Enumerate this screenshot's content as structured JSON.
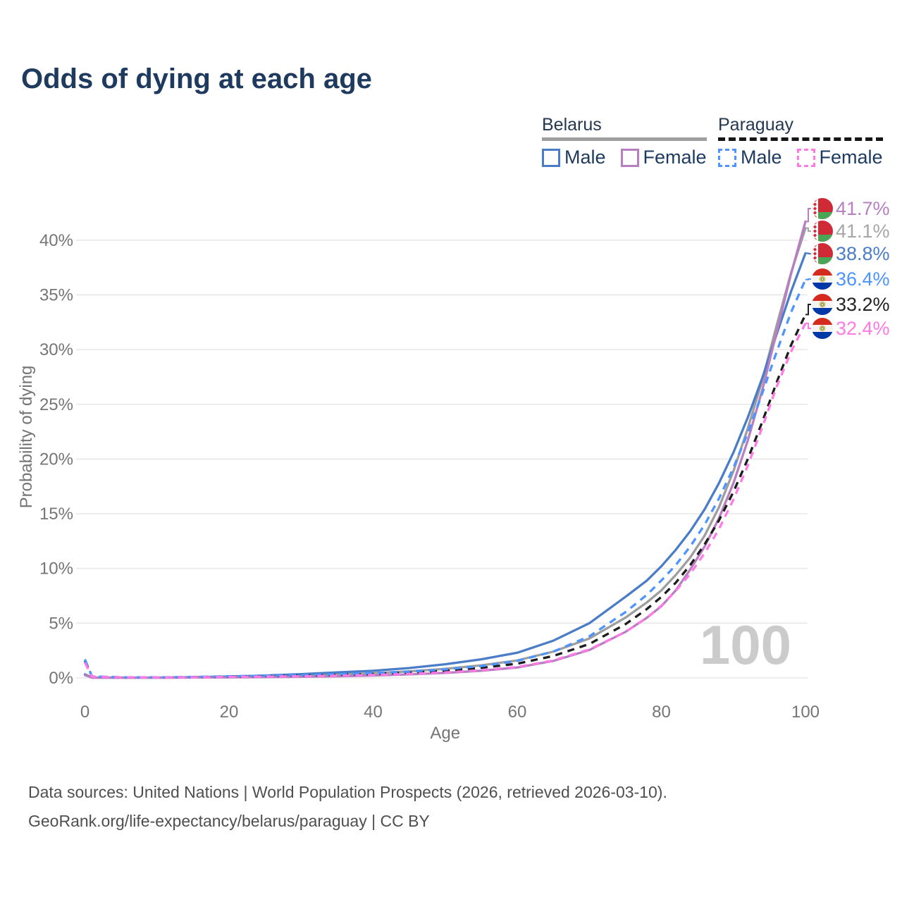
{
  "title": "Odds of dying at each age",
  "legend": {
    "belarus": {
      "name": "Belarus",
      "male": "Male",
      "female": "Female"
    },
    "paraguay": {
      "name": "Paraguay",
      "male": "Male",
      "female": "Female"
    }
  },
  "watermark": "100",
  "footer": {
    "line1": "Data sources: United Nations | World Population Prospects (2026, retrieved 2026-03-10).",
    "line2": "GeoRank.org/life-expectancy/belarus/paraguay | CC BY"
  },
  "colors": {
    "title": "#1e3a5f",
    "axis_text": "#757575",
    "grid": "#e8e8e8",
    "watermark": "#cbcbcb",
    "belarus_male": "#4a7cc7",
    "belarus_female": "#b77fc1",
    "belarus_total": "#9e9e9e",
    "paraguay_male": "#4d94ff",
    "paraguay_female": "#ff7ae5",
    "paraguay_total": "#1c1c1c"
  },
  "chart_data": {
    "type": "line",
    "title": "Odds of dying at each age",
    "xlabel": "Age",
    "ylabel": "Probability of dying",
    "x_ticks": [
      0,
      20,
      40,
      60,
      80,
      100
    ],
    "y_ticks_percent": [
      0,
      5,
      10,
      15,
      20,
      25,
      30,
      35,
      40
    ],
    "xlim": [
      0,
      100
    ],
    "ylim_percent": [
      0,
      43.5
    ],
    "grid": "horizontal-only",
    "legend_position": "top-right",
    "age_counter_label": "100",
    "ages": [
      0,
      1,
      5,
      10,
      15,
      20,
      25,
      30,
      35,
      40,
      45,
      50,
      55,
      60,
      65,
      70,
      75,
      78,
      80,
      82,
      84,
      86,
      88,
      90,
      92,
      94,
      96,
      98,
      100
    ],
    "series": [
      {
        "name": "Belarus Female",
        "country": "Belarus",
        "sex": "Female",
        "line": "solid",
        "color": "#b77fc1",
        "end_label": "41.7%",
        "values": [
          0.25,
          0.02,
          0.02,
          0.02,
          0.03,
          0.05,
          0.07,
          0.1,
          0.15,
          0.22,
          0.32,
          0.46,
          0.66,
          0.95,
          1.55,
          2.55,
          4.2,
          5.5,
          6.55,
          8.0,
          9.9,
          12.0,
          14.6,
          17.8,
          21.7,
          26.3,
          31.6,
          36.9,
          41.7
        ]
      },
      {
        "name": "Belarus Both sexes",
        "country": "Belarus",
        "sex": "Both",
        "line": "solid",
        "color": "#9e9e9e",
        "end_label": "41.1%",
        "values": [
          0.3,
          0.03,
          0.02,
          0.02,
          0.05,
          0.09,
          0.14,
          0.21,
          0.31,
          0.43,
          0.6,
          0.83,
          1.15,
          1.6,
          2.4,
          3.6,
          5.5,
          6.9,
          8.0,
          9.4,
          11.0,
          13.0,
          15.6,
          18.9,
          22.8,
          27.2,
          32.2,
          37.0,
          41.1
        ]
      },
      {
        "name": "Belarus Male",
        "country": "Belarus",
        "sex": "Male",
        "line": "solid",
        "color": "#4a7cc7",
        "end_label": "38.8%",
        "values": [
          0.32,
          0.04,
          0.03,
          0.03,
          0.07,
          0.13,
          0.22,
          0.35,
          0.5,
          0.65,
          0.9,
          1.25,
          1.7,
          2.3,
          3.4,
          5.0,
          7.4,
          8.9,
          10.2,
          11.7,
          13.4,
          15.4,
          17.8,
          20.6,
          23.8,
          27.4,
          31.4,
          35.3,
          38.8
        ]
      },
      {
        "name": "Paraguay Male",
        "country": "Paraguay",
        "sex": "Male",
        "line": "dashed",
        "color": "#4d94ff",
        "end_label": "36.4%",
        "values": [
          1.7,
          0.13,
          0.06,
          0.05,
          0.09,
          0.15,
          0.2,
          0.26,
          0.34,
          0.44,
          0.58,
          0.78,
          1.08,
          1.55,
          2.4,
          3.8,
          6.0,
          7.6,
          8.9,
          10.3,
          12.0,
          14.0,
          16.4,
          19.2,
          22.4,
          26.0,
          29.8,
          33.4,
          36.4
        ]
      },
      {
        "name": "Paraguay Both sexes",
        "country": "Paraguay",
        "sex": "Both",
        "line": "dashed",
        "color": "#1c1c1c",
        "end_label": "33.2%",
        "values": [
          1.55,
          0.12,
          0.05,
          0.04,
          0.07,
          0.12,
          0.16,
          0.21,
          0.28,
          0.37,
          0.49,
          0.66,
          0.92,
          1.3,
          2.0,
          3.1,
          4.9,
          6.3,
          7.4,
          8.7,
          10.3,
          12.2,
          14.4,
          17.0,
          20.0,
          23.4,
          27.0,
          30.4,
          33.2
        ]
      },
      {
        "name": "Paraguay Female",
        "country": "Paraguay",
        "sex": "Female",
        "line": "dashed",
        "color": "#ff7ae5",
        "end_label": "32.4%",
        "values": [
          1.4,
          0.11,
          0.05,
          0.04,
          0.06,
          0.09,
          0.12,
          0.15,
          0.2,
          0.27,
          0.36,
          0.5,
          0.7,
          1.0,
          1.6,
          2.6,
          4.2,
          5.5,
          6.6,
          7.95,
          9.5,
          11.4,
          13.6,
          16.3,
          19.4,
          22.9,
          26.6,
          29.8,
          32.4
        ]
      }
    ],
    "annotations": [
      {
        "label": "41.7%",
        "value_pct": 41.7,
        "color": "#b77fc1",
        "flag": "belarus"
      },
      {
        "label": "41.1%",
        "value_pct": 41.1,
        "color": "#a6a6a6",
        "flag": "belarus"
      },
      {
        "label": "38.8%",
        "value_pct": 38.8,
        "color": "#4a7cc7",
        "flag": "belarus"
      },
      {
        "label": "36.4%",
        "value_pct": 36.4,
        "color": "#4d94ff",
        "flag": "paraguay"
      },
      {
        "label": "33.2%",
        "value_pct": 33.2,
        "color": "#222222",
        "flag": "paraguay"
      },
      {
        "label": "32.4%",
        "value_pct": 32.4,
        "color": "#ff7ae5",
        "flag": "paraguay"
      }
    ]
  }
}
